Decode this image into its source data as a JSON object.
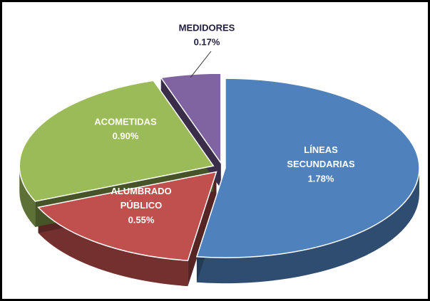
{
  "chart_data": {
    "type": "pie3d",
    "categories": [
      "LÍNEAS SECUNDARIAS",
      "ALUMBRADO PÚBLICO",
      "ACOMETIDAS",
      "MEDIDORES"
    ],
    "values": [
      1.78,
      0.55,
      0.9,
      0.17
    ],
    "value_labels": [
      "1.78%",
      "0.55%",
      "0.90%",
      "0.17%"
    ],
    "colors": [
      "#4f81bd",
      "#c0504d",
      "#9bbb59",
      "#8064a2"
    ]
  }
}
